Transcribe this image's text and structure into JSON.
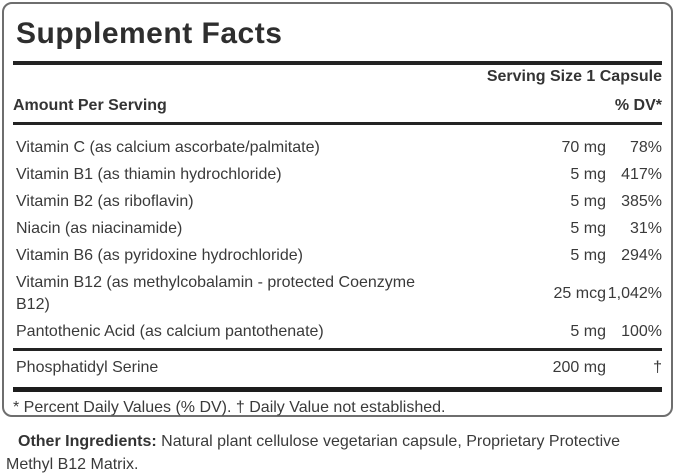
{
  "label": {
    "title": "Supplement Facts",
    "serving_size": "Serving Size 1 Capsule",
    "header": {
      "amount_column": "Amount Per Serving",
      "dv_column": "% DV*"
    },
    "rows": [
      {
        "name": "Vitamin C (as calcium ascorbate/palmitate)",
        "amount": "70 mg",
        "dv": "78%"
      },
      {
        "name": "Vitamin B1 (as thiamin hydrochloride)",
        "amount": "5 mg",
        "dv": "417%"
      },
      {
        "name": "Vitamin B2 (as riboflavin)",
        "amount": "5 mg",
        "dv": "385%"
      },
      {
        "name": "Niacin (as niacinamide)",
        "amount": "5 mg",
        "dv": "31%"
      },
      {
        "name": "Vitamin B6 (as pyridoxine hydrochloride)",
        "amount": "5 mg",
        "dv": "294%"
      },
      {
        "name": "Vitamin B12 (as methylcobalamin - protected Coenzyme\nB12)",
        "amount": "25 mcg",
        "dv": "1,042%"
      },
      {
        "name": "Pantothenic Acid (as calcium pantothenate)",
        "amount": "5 mg",
        "dv": "100%"
      }
    ],
    "secondary_row": {
      "name": "Phosphatidyl Serine",
      "amount": "200 mg",
      "dv": "†"
    },
    "footnote": "* Percent Daily Values (% DV). † Daily Value not established.",
    "other_ingredients": {
      "label": "Other Ingredients:",
      "text": " Natural plant cellulose vegetarian capsule, Proprietary Protective Methyl B12 Matrix."
    },
    "colors": {
      "border": "#6e6e6e",
      "rule": "#232323",
      "text": "#3a3a3a"
    }
  }
}
